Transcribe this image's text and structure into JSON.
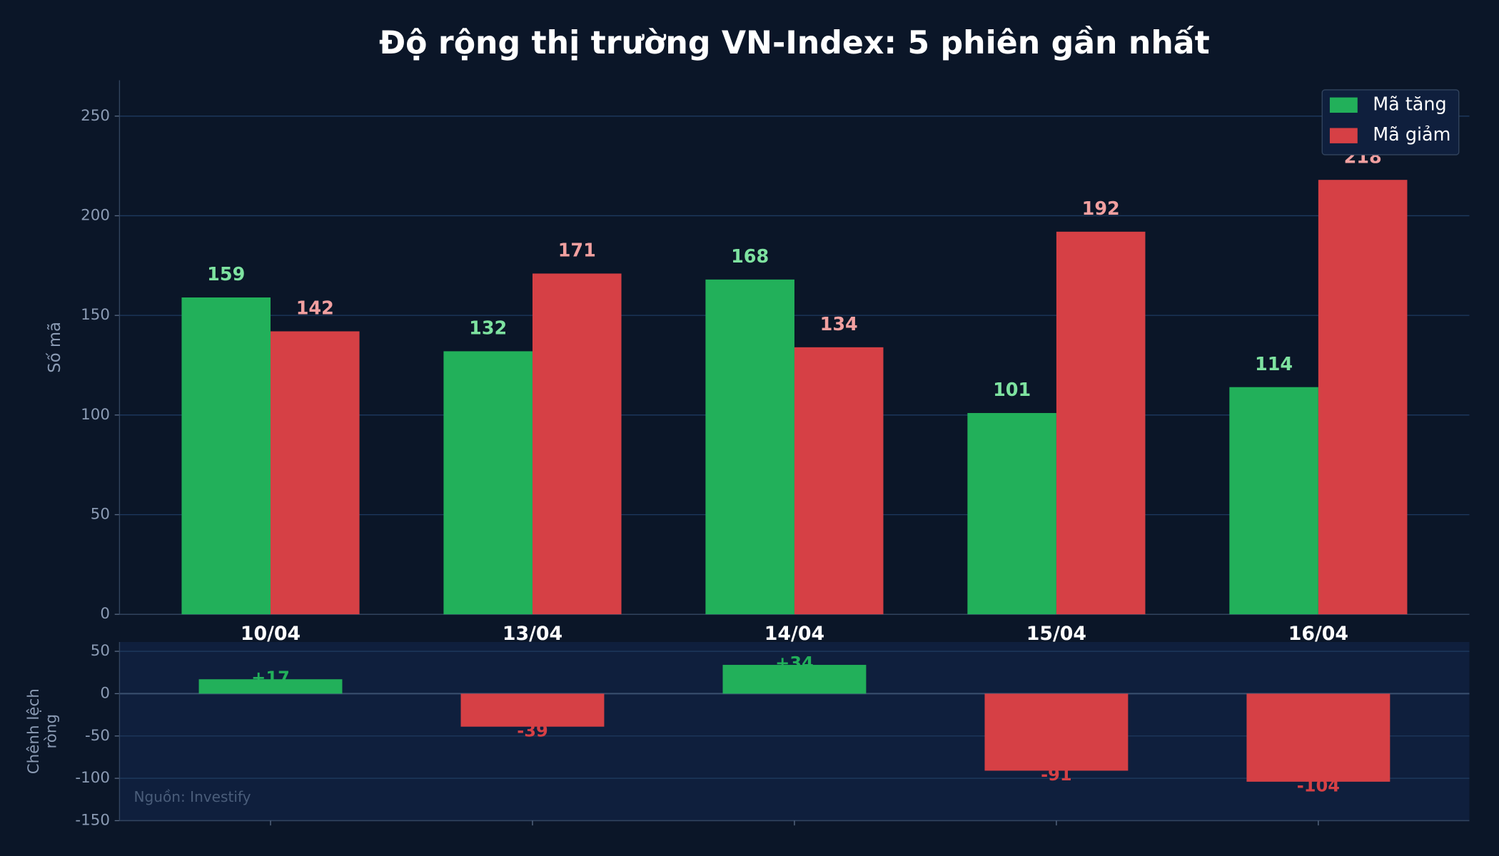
{
  "chart_data": [
    {
      "type": "bar",
      "title": "Độ rộng thị trường VN-Index: 5 phiên gần nhất",
      "ylabel": "Số mã",
      "categories": [
        "10/04",
        "13/04",
        "14/04",
        "15/04",
        "16/04"
      ],
      "series": [
        {
          "name": "Mã tăng",
          "color": "#22b05a",
          "values": [
            159,
            132,
            168,
            101,
            114
          ]
        },
        {
          "name": "Mã giảm",
          "color": "#d64045",
          "values": [
            142,
            171,
            134,
            192,
            218
          ]
        }
      ],
      "ylim": [
        0,
        268
      ],
      "yticks": [
        0,
        50,
        100,
        150,
        200,
        250
      ],
      "grid": true,
      "legend": "upper right"
    },
    {
      "type": "diverging-bar",
      "ylabel": "Chênh lệch ròng",
      "values": [
        17,
        -39,
        34,
        -91,
        -104
      ],
      "value_labels": [
        "+17",
        "-39",
        "+34",
        "-91",
        "-104"
      ],
      "positive_color": "#22b05a",
      "negative_color": "#d64045",
      "ylim": [
        -150,
        61
      ],
      "yticks": [
        -150,
        -100,
        -50,
        0,
        50
      ],
      "grid": true,
      "annotation": "Nguồn: Investify"
    }
  ]
}
